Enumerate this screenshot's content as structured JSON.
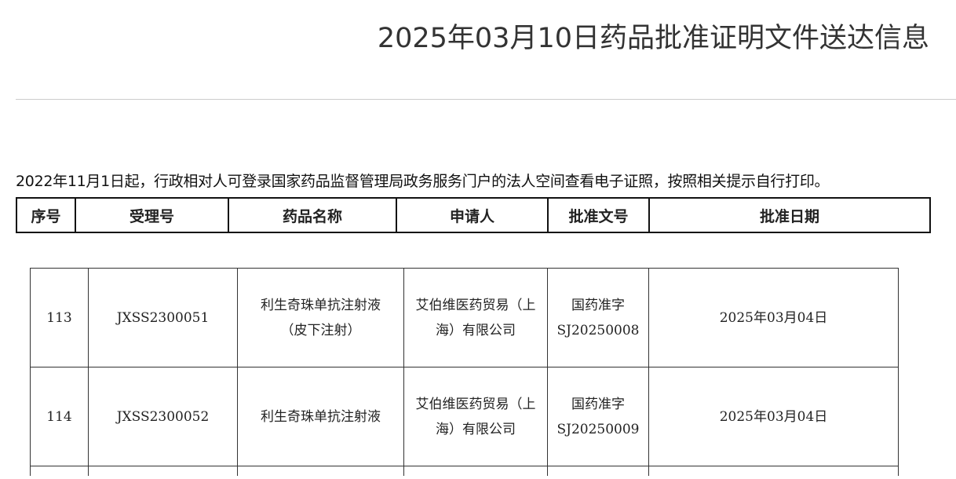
{
  "title": "2025年03月10日药品批准证明文件送达信息",
  "notice": "2022年11月1日起，行政相对人可登录国家药品监督管理局政务服务门户的法人空间查看电子证照，按照相关提示自行打印。",
  "headers": [
    "序号",
    "受理号",
    "药品名称",
    "申请人",
    "批准文号",
    "批准日期"
  ],
  "rows": [
    {
      "no": "113",
      "accept": "JXSS2300051",
      "drug": "利生奇珠单抗注射液（皮下注射）",
      "applicant": "艾伯维医药贸易（上海）有限公司",
      "approval_l1": "国药准字",
      "approval_l2": "SJ20250008",
      "date": "2025年03月04日"
    },
    {
      "no": "114",
      "accept": "JXSS2300052",
      "drug": "利生奇珠单抗注射液",
      "applicant": "艾伯维医药贸易（上海）有限公司",
      "approval_l1": "国药准字",
      "approval_l2": "SJ20250009",
      "date": "2025年03月04日"
    }
  ]
}
